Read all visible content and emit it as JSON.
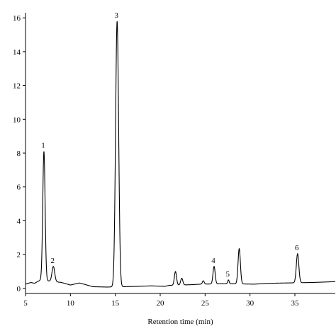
{
  "chart_data": {
    "type": "line",
    "title": "",
    "xlabel": "Retention time (min)",
    "ylabel": "",
    "xlim": [
      5,
      39.5
    ],
    "ylim": [
      -0.3,
      16.3
    ],
    "xticks": [
      5,
      10,
      15,
      20,
      25,
      30,
      35
    ],
    "yticks": [
      0,
      2,
      4,
      6,
      8,
      10,
      12,
      14,
      16
    ],
    "grid": false,
    "line_color": "#000000",
    "baseline": [
      [
        5.0,
        0.25
      ],
      [
        5.6,
        0.35
      ],
      [
        6.0,
        0.3
      ],
      [
        6.4,
        0.42
      ],
      [
        6.7,
        0.5
      ],
      [
        9.0,
        0.35
      ],
      [
        10.0,
        0.2
      ],
      [
        11.0,
        0.32
      ],
      [
        11.5,
        0.25
      ],
      [
        12.5,
        0.1
      ],
      [
        14.0,
        0.08
      ],
      [
        16.0,
        0.1
      ],
      [
        17.5,
        0.12
      ],
      [
        19.0,
        0.15
      ],
      [
        20.5,
        0.12
      ],
      [
        21.0,
        0.18
      ],
      [
        23.5,
        0.22
      ],
      [
        24.5,
        0.25
      ],
      [
        27.5,
        0.28
      ],
      [
        30.5,
        0.25
      ],
      [
        32.0,
        0.3
      ],
      [
        34.0,
        0.32
      ],
      [
        37.0,
        0.35
      ],
      [
        39.5,
        0.4
      ]
    ],
    "peaks": [
      {
        "label": "1",
        "x": 7.05,
        "y": 8.1,
        "w": 0.13
      },
      {
        "label": "2",
        "x": 8.1,
        "y": 1.3,
        "w": 0.15
      },
      {
        "label": "3",
        "x": 15.2,
        "y": 15.8,
        "w": 0.17
      },
      {
        "label": "",
        "x": 21.7,
        "y": 1.0,
        "w": 0.12
      },
      {
        "label": "",
        "x": 22.4,
        "y": 0.6,
        "w": 0.12
      },
      {
        "label": "",
        "x": 24.8,
        "y": 0.45,
        "w": 0.1
      },
      {
        "label": "4",
        "x": 26.0,
        "y": 1.3,
        "w": 0.12
      },
      {
        "label": "5",
        "x": 27.6,
        "y": 0.5,
        "w": 0.08
      },
      {
        "label": "",
        "x": 28.8,
        "y": 2.35,
        "w": 0.13
      },
      {
        "label": "6",
        "x": 35.3,
        "y": 2.05,
        "w": 0.14
      }
    ]
  }
}
